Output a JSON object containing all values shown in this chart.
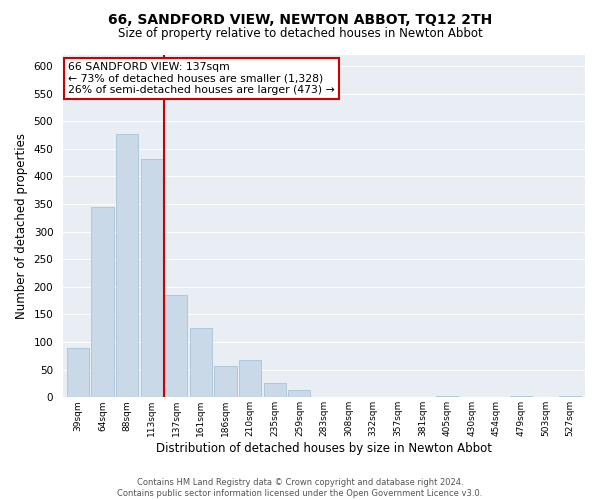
{
  "title": "66, SANDFORD VIEW, NEWTON ABBOT, TQ12 2TH",
  "subtitle": "Size of property relative to detached houses in Newton Abbot",
  "xlabel": "Distribution of detached houses by size in Newton Abbot",
  "ylabel": "Number of detached properties",
  "bar_color": "#c9d9e8",
  "bar_edgecolor": "#a8c4d8",
  "vline_color": "#cc0000",
  "bins": [
    "39sqm",
    "64sqm",
    "88sqm",
    "113sqm",
    "137sqm",
    "161sqm",
    "186sqm",
    "210sqm",
    "235sqm",
    "259sqm",
    "283sqm",
    "308sqm",
    "332sqm",
    "357sqm",
    "381sqm",
    "405sqm",
    "430sqm",
    "454sqm",
    "479sqm",
    "503sqm",
    "527sqm"
  ],
  "values": [
    90,
    345,
    477,
    432,
    185,
    125,
    57,
    68,
    25,
    13,
    0,
    0,
    0,
    0,
    0,
    3,
    0,
    0,
    3,
    0,
    3
  ],
  "ylim": [
    0,
    620
  ],
  "yticks": [
    0,
    50,
    100,
    150,
    200,
    250,
    300,
    350,
    400,
    450,
    500,
    550,
    600
  ],
  "annotation_title": "66 SANDFORD VIEW: 137sqm",
  "annotation_line1": "← 73% of detached houses are smaller (1,328)",
  "annotation_line2": "26% of semi-detached houses are larger (473) →",
  "annotation_box_facecolor": "#ffffff",
  "annotation_box_edgecolor": "#cc0000",
  "footer1": "Contains HM Land Registry data © Crown copyright and database right 2024.",
  "footer2": "Contains public sector information licensed under the Open Government Licence v3.0.",
  "plot_background": "#e8eef4",
  "fig_background": "#ffffff",
  "vline_index": 3.5
}
